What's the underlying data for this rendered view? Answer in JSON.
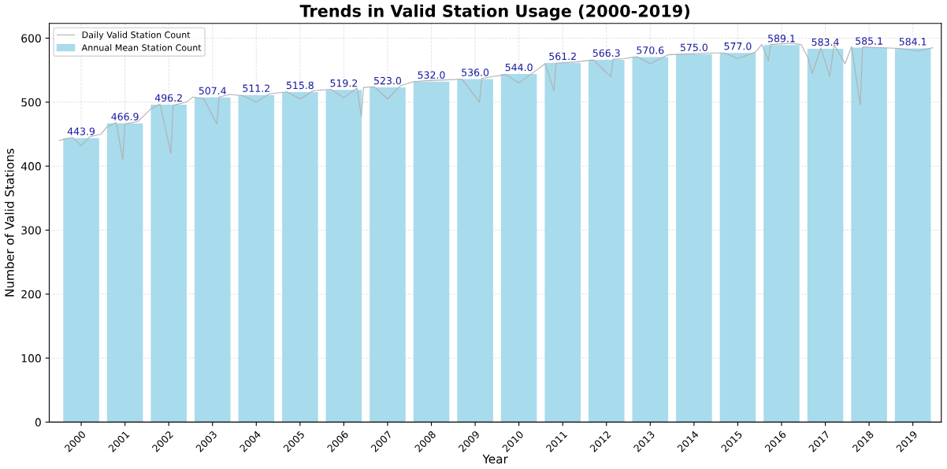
{
  "chart_data": {
    "type": "bar",
    "title": "Trends in Valid Station Usage (2000-2019)",
    "xlabel": "Year",
    "ylabel": "Number of Valid Stations",
    "x": [
      2000.5,
      2001.5,
      2002.5,
      2003.5,
      2004.5,
      2005.5,
      2006.5,
      2007.5,
      2008.5,
      2009.5,
      2010.5,
      2011.5,
      2012.5,
      2013.5,
      2014.5,
      2015.5,
      2016.5,
      2017.5,
      2018.5,
      2019.5
    ],
    "series": [
      {
        "name": "Daily Valid Station Count",
        "type": "line",
        "color": "#b0b0b0",
        "x": [
          2000.0,
          2000.3,
          2000.5,
          2000.7,
          2000.95,
          2001.1,
          2001.3,
          2001.45,
          2001.5,
          2001.8,
          2001.95,
          2002.1,
          2002.3,
          2002.55,
          2002.6,
          2002.9,
          2003.05,
          2003.3,
          2003.6,
          2003.65,
          2003.9,
          2004.2,
          2004.5,
          2004.8,
          2005.2,
          2005.5,
          2005.8,
          2006.2,
          2006.5,
          2006.8,
          2006.9,
          2006.95,
          2007.2,
          2007.5,
          2007.8,
          2008.1,
          2008.5,
          2008.9,
          2009.2,
          2009.6,
          2009.65,
          2009.9,
          2010.2,
          2010.5,
          2010.9,
          2011.1,
          2011.3,
          2011.35,
          2011.8,
          2012.2,
          2012.6,
          2012.65,
          2012.9,
          2013.2,
          2013.5,
          2013.9,
          2014.2,
          2014.6,
          2014.9,
          2015.2,
          2015.5,
          2015.9,
          2016.05,
          2016.2,
          2016.25,
          2016.7,
          2016.95,
          2017.1,
          2017.2,
          2017.4,
          2017.6,
          2017.7,
          2017.95,
          2018.1,
          2018.3,
          2018.35,
          2018.8,
          2019.2,
          2019.6,
          2019.95
        ],
        "values": [
          440,
          445,
          432,
          446,
          450,
          462,
          468,
          410,
          466,
          470,
          480,
          490,
          497,
          420,
          495,
          500,
          508,
          505,
          466,
          508,
          512,
          510,
          500,
          513,
          516,
          505,
          518,
          520,
          507,
          522,
          478,
          523,
          524,
          505,
          526,
          532,
          534,
          535,
          536,
          500,
          537,
          540,
          543,
          530,
          550,
          560,
          518,
          561,
          563,
          566,
          540,
          567,
          568,
          571,
          560,
          574,
          575,
          576,
          577,
          577,
          568,
          578,
          590,
          565,
          590,
          592,
          590,
          570,
          545,
          585,
          540,
          590,
          560,
          587,
          495,
          586,
          585,
          584,
          580,
          585
        ]
      },
      {
        "name": "Annual Mean Station Count",
        "color": "#a8dbec",
        "values": [
          443.9,
          466.9,
          496.2,
          507.4,
          511.2,
          515.8,
          519.2,
          523.0,
          532.0,
          536.0,
          544.0,
          561.2,
          566.3,
          570.6,
          575.0,
          577.0,
          589.1,
          583.4,
          585.1,
          584.1
        ],
        "value_labels": [
          "443.9",
          "466.9",
          "496.2",
          "507.4",
          "511.2",
          "515.8",
          "519.2",
          "523.0",
          "532.0",
          "536.0",
          "544.0",
          "561.2",
          "566.3",
          "570.6",
          "575.0",
          "577.0",
          "589.1",
          "583.4",
          "585.1",
          "584.1"
        ]
      }
    ],
    "xlim": [
      1999.77,
      2020.15
    ],
    "xticks": [
      {
        "value": 2000.5,
        "label": "2000"
      },
      {
        "value": 2001.5,
        "label": "2001"
      },
      {
        "value": 2002.5,
        "label": "2002"
      },
      {
        "value": 2003.5,
        "label": "2003"
      },
      {
        "value": 2004.5,
        "label": "2004"
      },
      {
        "value": 2005.5,
        "label": "2005"
      },
      {
        "value": 2006.5,
        "label": "2006"
      },
      {
        "value": 2007.5,
        "label": "2007"
      },
      {
        "value": 2008.5,
        "label": "2008"
      },
      {
        "value": 2009.5,
        "label": "2009"
      },
      {
        "value": 2010.5,
        "label": "2010"
      },
      {
        "value": 2011.5,
        "label": "2011"
      },
      {
        "value": 2012.5,
        "label": "2012"
      },
      {
        "value": 2013.5,
        "label": "2013"
      },
      {
        "value": 2014.5,
        "label": "2014"
      },
      {
        "value": 2015.5,
        "label": "2015"
      },
      {
        "value": 2016.5,
        "label": "2016"
      },
      {
        "value": 2017.5,
        "label": "2017"
      },
      {
        "value": 2018.5,
        "label": "2018"
      },
      {
        "value": 2019.5,
        "label": "2019"
      }
    ],
    "ylim": [
      0,
      623
    ],
    "yticks": [
      0,
      100,
      200,
      300,
      400,
      500,
      600
    ],
    "grid": true,
    "legend": "top left"
  }
}
